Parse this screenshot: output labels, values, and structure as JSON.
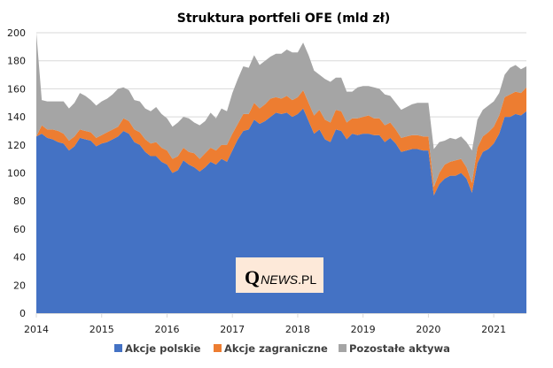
{
  "chart_data": {
    "type": "area",
    "stacked": true,
    "title": "Struktura portfeli OFE (mld zł)",
    "xlabel": "",
    "ylabel": "",
    "ylim": [
      0,
      200
    ],
    "yticks": [
      0,
      20,
      40,
      60,
      80,
      100,
      120,
      140,
      160,
      180,
      200
    ],
    "ytick_labels": [
      "0",
      "20",
      "40",
      "60",
      "80",
      "100",
      "120",
      "140",
      "160",
      "180",
      "200"
    ],
    "xlim": [
      2014.0,
      2021.5
    ],
    "xticks": [
      2014,
      2015,
      2016,
      2017,
      2018,
      2019,
      2020,
      2021
    ],
    "xtick_labels": [
      "2014",
      "2015",
      "2016",
      "2017",
      "2018",
      "2019",
      "2020",
      "2021"
    ],
    "grid": true,
    "legend_position": "bottom",
    "x_start": "2014-01",
    "x_frequency": "monthly",
    "series": [
      {
        "name": "Akcje polskie",
        "color": "#4472C4",
        "values": [
          126,
          128,
          125,
          124,
          122,
          121,
          116,
          119,
          125,
          124,
          123,
          119,
          121,
          122,
          124,
          126,
          130,
          128,
          122,
          120,
          115,
          112,
          112,
          108,
          106,
          100,
          102,
          109,
          106,
          104,
          101,
          104,
          108,
          106,
          110,
          108,
          116,
          124,
          130,
          131,
          138,
          135,
          137,
          140,
          143,
          142,
          143,
          140,
          142,
          146,
          137,
          128,
          131,
          124,
          122,
          131,
          130,
          124,
          128,
          127,
          128,
          128,
          127,
          127,
          122,
          125,
          121,
          115,
          116,
          117,
          117,
          116,
          116,
          84,
          92,
          96,
          98,
          98,
          100,
          96,
          86,
          107,
          115,
          117,
          121,
          128,
          140,
          140,
          142,
          141,
          144
        ],
        "label": "legend.items.0.label"
      },
      {
        "name": "Akcje zagraniczne",
        "color": "#ED7D31",
        "values": [
          0,
          6,
          6,
          7,
          8,
          7,
          7,
          7,
          6,
          6,
          6,
          6,
          6,
          7,
          7,
          7,
          9,
          9,
          9,
          9,
          9,
          9,
          10,
          10,
          10,
          10,
          10,
          9,
          9,
          10,
          9,
          10,
          10,
          10,
          10,
          12,
          12,
          11,
          12,
          11,
          12,
          11,
          12,
          13,
          11,
          11,
          12,
          12,
          12,
          13,
          13,
          13,
          14,
          14,
          14,
          14,
          14,
          12,
          11,
          12,
          12,
          13,
          12,
          12,
          12,
          11,
          10,
          10,
          10,
          10,
          10,
          10,
          10,
          6,
          8,
          10,
          10,
          11,
          10,
          8,
          7,
          11,
          11,
          12,
          12,
          13,
          14,
          16,
          16,
          16,
          17
        ],
        "label": "legend.items.1.label"
      },
      {
        "name": "Pozostałe aktywa",
        "color": "#A5A5A5",
        "values": [
          74,
          18,
          20,
          20,
          21,
          23,
          23,
          24,
          26,
          25,
          23,
          23,
          24,
          24,
          25,
          27,
          22,
          22,
          21,
          22,
          22,
          23,
          25,
          24,
          23,
          23,
          24,
          22,
          24,
          22,
          24,
          23,
          25,
          23,
          26,
          24,
          29,
          32,
          34,
          33,
          34,
          31,
          31,
          30,
          31,
          32,
          33,
          34,
          32,
          34,
          34,
          32,
          25,
          29,
          29,
          23,
          24,
          22,
          19,
          22,
          22,
          21,
          22,
          21,
          22,
          19,
          19,
          20,
          21,
          22,
          23,
          24,
          24,
          27,
          22,
          17,
          17,
          15,
          16,
          18,
          23,
          20,
          19,
          19,
          18,
          16,
          16,
          19,
          19,
          17,
          15
        ],
        "label": "legend.items.2.label"
      }
    ]
  },
  "title": "Struktura portfeli OFE (mld zł)",
  "legend": {
    "items": [
      {
        "label": "Akcje polskie",
        "color": "#4472C4"
      },
      {
        "label": "Akcje zagraniczne",
        "color": "#ED7D31"
      },
      {
        "label": "Pozostałe aktywa",
        "color": "#A5A5A5"
      }
    ]
  },
  "watermark": {
    "q": "Q",
    "news": "NEWS",
    "pl": ".PL",
    "background": "#FDE9D9"
  }
}
